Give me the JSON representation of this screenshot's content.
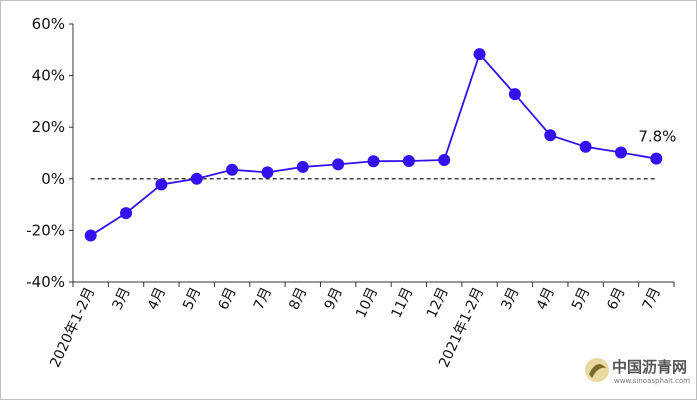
{
  "chart_data": {
    "type": "line",
    "categories": [
      "2020年1-2月",
      "3月",
      "4月",
      "5月",
      "6月",
      "7月",
      "8月",
      "9月",
      "10月",
      "11月",
      "12月",
      "2021年1-2月",
      "3月",
      "4月",
      "5月",
      "6月",
      "7月"
    ],
    "series": [
      {
        "values": [
          -22.0,
          -13.3,
          -2.2,
          0.0,
          3.5,
          2.5,
          4.6,
          5.6,
          6.8,
          6.9,
          7.3,
          48.3,
          32.8,
          16.9,
          12.4,
          10.2,
          7.8
        ]
      }
    ],
    "ylim": [
      -40,
      60
    ],
    "yticks": [
      -40,
      -20,
      0,
      20,
      40,
      60
    ],
    "ytick_labels": [
      "-40%",
      "-20%",
      "0%",
      "20%",
      "40%",
      "60%"
    ],
    "data_labels": [
      {
        "index": 16,
        "text": "7.8%"
      }
    ],
    "reference_line": {
      "y": 0,
      "style": "dashed"
    },
    "grid": false,
    "title": "",
    "xlabel": "",
    "ylabel": "",
    "colors": {
      "series": "#3311ee",
      "border": "#bfbfbf"
    }
  },
  "watermark": {
    "name": "中国沥青网",
    "url": "www.sinoasphalt.com"
  }
}
